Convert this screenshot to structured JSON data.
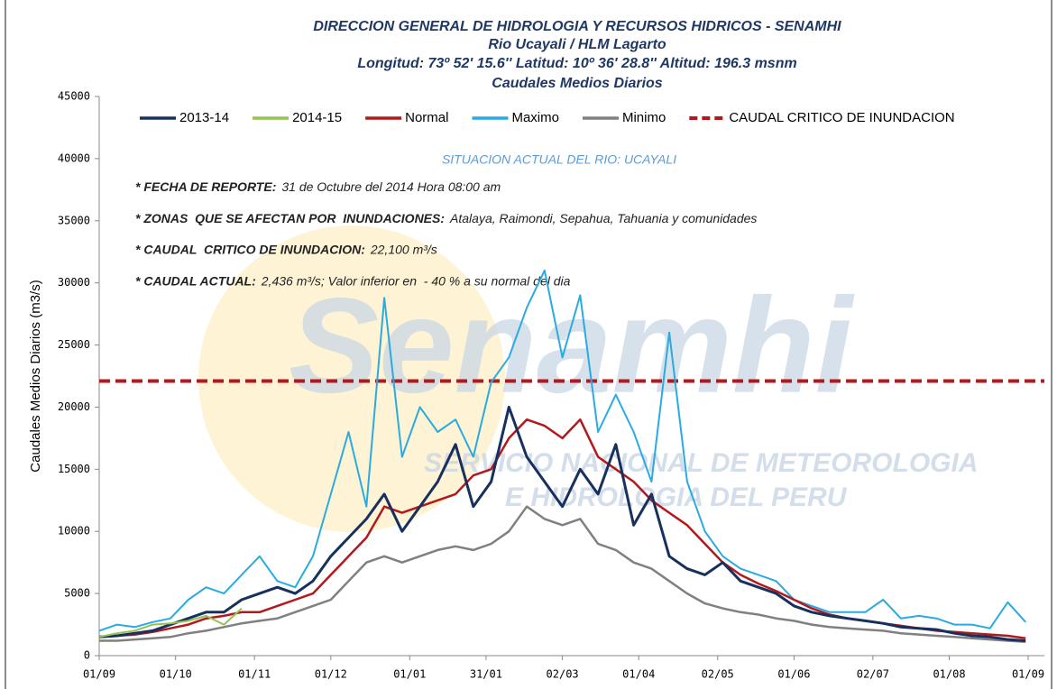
{
  "chart_data": {
    "type": "line",
    "title": [
      "DIRECCION GENERAL DE HIDROLOGIA Y RECURSOS HIDRICOS - SENAMHI",
      "Rio Ucayali / HLM Lagarto",
      "Longitud: 73º 52' 15.6'' Latitud: 10º 36' 28.8'' Altitud: 196.3 msnm",
      "Caudales Medios Diarios"
    ],
    "y_label": "Caudales Medios Diarios (m3/s)",
    "subtitle": "SITUACION ACTUAL DEL RIO: UCAYALI",
    "annotations": [
      {
        "label": "* FECHA DE REPORTE:",
        "text": "31 de Octubre del 2014 Hora 08:00 am"
      },
      {
        "label": "* ZONAS  QUE SE AFECTAN POR  INUNDACIONES:",
        "text": "Atalaya, Raimondi, Sepahua, Tahuania y comunidades"
      },
      {
        "label": "* CAUDAL  CRITICO DE INUNDACION:",
        "text": "22,100 m³/s"
      },
      {
        "label": "* CAUDAL ACTUAL:",
        "text": "2,436 m³/s; Valor inferior en  - 40 % a su normal del dia"
      }
    ],
    "watermark": [
      "Senamhi",
      "SERVICIO NACIONAL DE METEOROLOGIA",
      "E HIDROLOGIA DEL PERU"
    ],
    "x": [
      0,
      7,
      14,
      21,
      28,
      35,
      42,
      49,
      56,
      63,
      70,
      77,
      84,
      91,
      98,
      105,
      112,
      119,
      126,
      133,
      140,
      147,
      154,
      161,
      168,
      175,
      182,
      189,
      196,
      203,
      210,
      217,
      224,
      231,
      238,
      245,
      252,
      259,
      266,
      273,
      280,
      287,
      294,
      301,
      308,
      315,
      322,
      329,
      336,
      343,
      350,
      357,
      364
    ],
    "xlim": [
      0,
      365
    ],
    "xticks": [
      {
        "value": 0,
        "label": "01/09"
      },
      {
        "value": 30,
        "label": "01/10"
      },
      {
        "value": 61,
        "label": "01/11"
      },
      {
        "value": 91,
        "label": "01/12"
      },
      {
        "value": 122,
        "label": "01/01"
      },
      {
        "value": 152,
        "label": "31/01"
      },
      {
        "value": 182,
        "label": "02/03"
      },
      {
        "value": 212,
        "label": "01/04"
      },
      {
        "value": 243,
        "label": "02/05"
      },
      {
        "value": 273,
        "label": "01/06"
      },
      {
        "value": 304,
        "label": "02/07"
      },
      {
        "value": 334,
        "label": "01/08"
      },
      {
        "value": 365,
        "label": "01/09"
      }
    ],
    "ylim": [
      0,
      45000
    ],
    "yticks": [
      0,
      5000,
      10000,
      15000,
      20000,
      25000,
      30000,
      35000,
      40000,
      45000
    ],
    "grid": false,
    "series": [
      {
        "name": "2013-14",
        "color": "#17305e",
        "width": 3,
        "values": [
          1500,
          1600,
          1800,
          2000,
          2500,
          3000,
          3500,
          3500,
          4500,
          5000,
          5500,
          5000,
          6000,
          8000,
          9500,
          11000,
          13000,
          10000,
          12000,
          14000,
          17000,
          12000,
          14000,
          20000,
          16000,
          14000,
          12000,
          15000,
          13000,
          17000,
          10500,
          13000,
          8000,
          7000,
          6500,
          7500,
          6000,
          5500,
          5000,
          4000,
          3500,
          3200,
          3000,
          2800,
          2600,
          2300,
          2200,
          2100,
          1800,
          1600,
          1500,
          1300,
          1200
        ]
      },
      {
        "name": "2014-15",
        "color": "#92c353",
        "width": 2,
        "values": [
          1500,
          1800,
          2000,
          2500,
          2600,
          2800,
          3200,
          2500,
          3800,
          null,
          null,
          null,
          null,
          null,
          null,
          null,
          null,
          null,
          null,
          null,
          null,
          null,
          null,
          null,
          null,
          null,
          null,
          null,
          null,
          null,
          null,
          null,
          null,
          null,
          null,
          null,
          null,
          null,
          null,
          null,
          null,
          null,
          null,
          null,
          null,
          null,
          null,
          null,
          null,
          null,
          null,
          null,
          null
        ]
      },
      {
        "name": "Normal",
        "color": "#b3191c",
        "width": 2.5,
        "values": [
          1500,
          1600,
          1700,
          1900,
          2200,
          2500,
          3000,
          3200,
          3500,
          3500,
          4000,
          4500,
          5000,
          6500,
          8000,
          9500,
          12000,
          11500,
          12000,
          12500,
          13000,
          14500,
          15000,
          17500,
          19000,
          18500,
          17500,
          19000,
          16000,
          15000,
          14000,
          12500,
          11500,
          10500,
          9000,
          7500,
          6500,
          5800,
          5200,
          4500,
          3800,
          3300,
          3000,
          2800,
          2600,
          2400,
          2200,
          2000,
          1900,
          1800,
          1700,
          1600,
          1400
        ]
      },
      {
        "name": "Maximo",
        "color": "#29abe2",
        "width": 2,
        "values": [
          2000,
          2500,
          2300,
          2700,
          3000,
          4500,
          5500,
          5000,
          6500,
          8000,
          6000,
          5500,
          8000,
          13000,
          18000,
          12000,
          28800,
          16000,
          20000,
          18000,
          19000,
          16000,
          22000,
          24000,
          28000,
          31000,
          24000,
          29000,
          18000,
          21000,
          18000,
          14000,
          26000,
          14000,
          10000,
          8000,
          7000,
          6500,
          6000,
          4500,
          4000,
          3500,
          3500,
          3500,
          4500,
          3000,
          3200,
          3000,
          2500,
          2500,
          2200,
          4300,
          2700
        ]
      },
      {
        "name": "Minimo",
        "color": "#808080",
        "width": 2.5,
        "values": [
          1200,
          1200,
          1300,
          1400,
          1500,
          1800,
          2000,
          2300,
          2600,
          2800,
          3000,
          3500,
          4000,
          4500,
          6000,
          7500,
          8000,
          7500,
          8000,
          8500,
          8800,
          8500,
          9000,
          10000,
          12000,
          11000,
          10500,
          11000,
          9000,
          8500,
          7500,
          7000,
          6000,
          5000,
          4200,
          3800,
          3500,
          3300,
          3000,
          2800,
          2500,
          2300,
          2200,
          2100,
          2000,
          1800,
          1700,
          1600,
          1500,
          1400,
          1300,
          1200,
          1100
        ]
      }
    ],
    "threshold": {
      "name": "CAUDAL CRITICO DE INUNDACION",
      "value": 22100,
      "color": "#b3191c"
    }
  }
}
